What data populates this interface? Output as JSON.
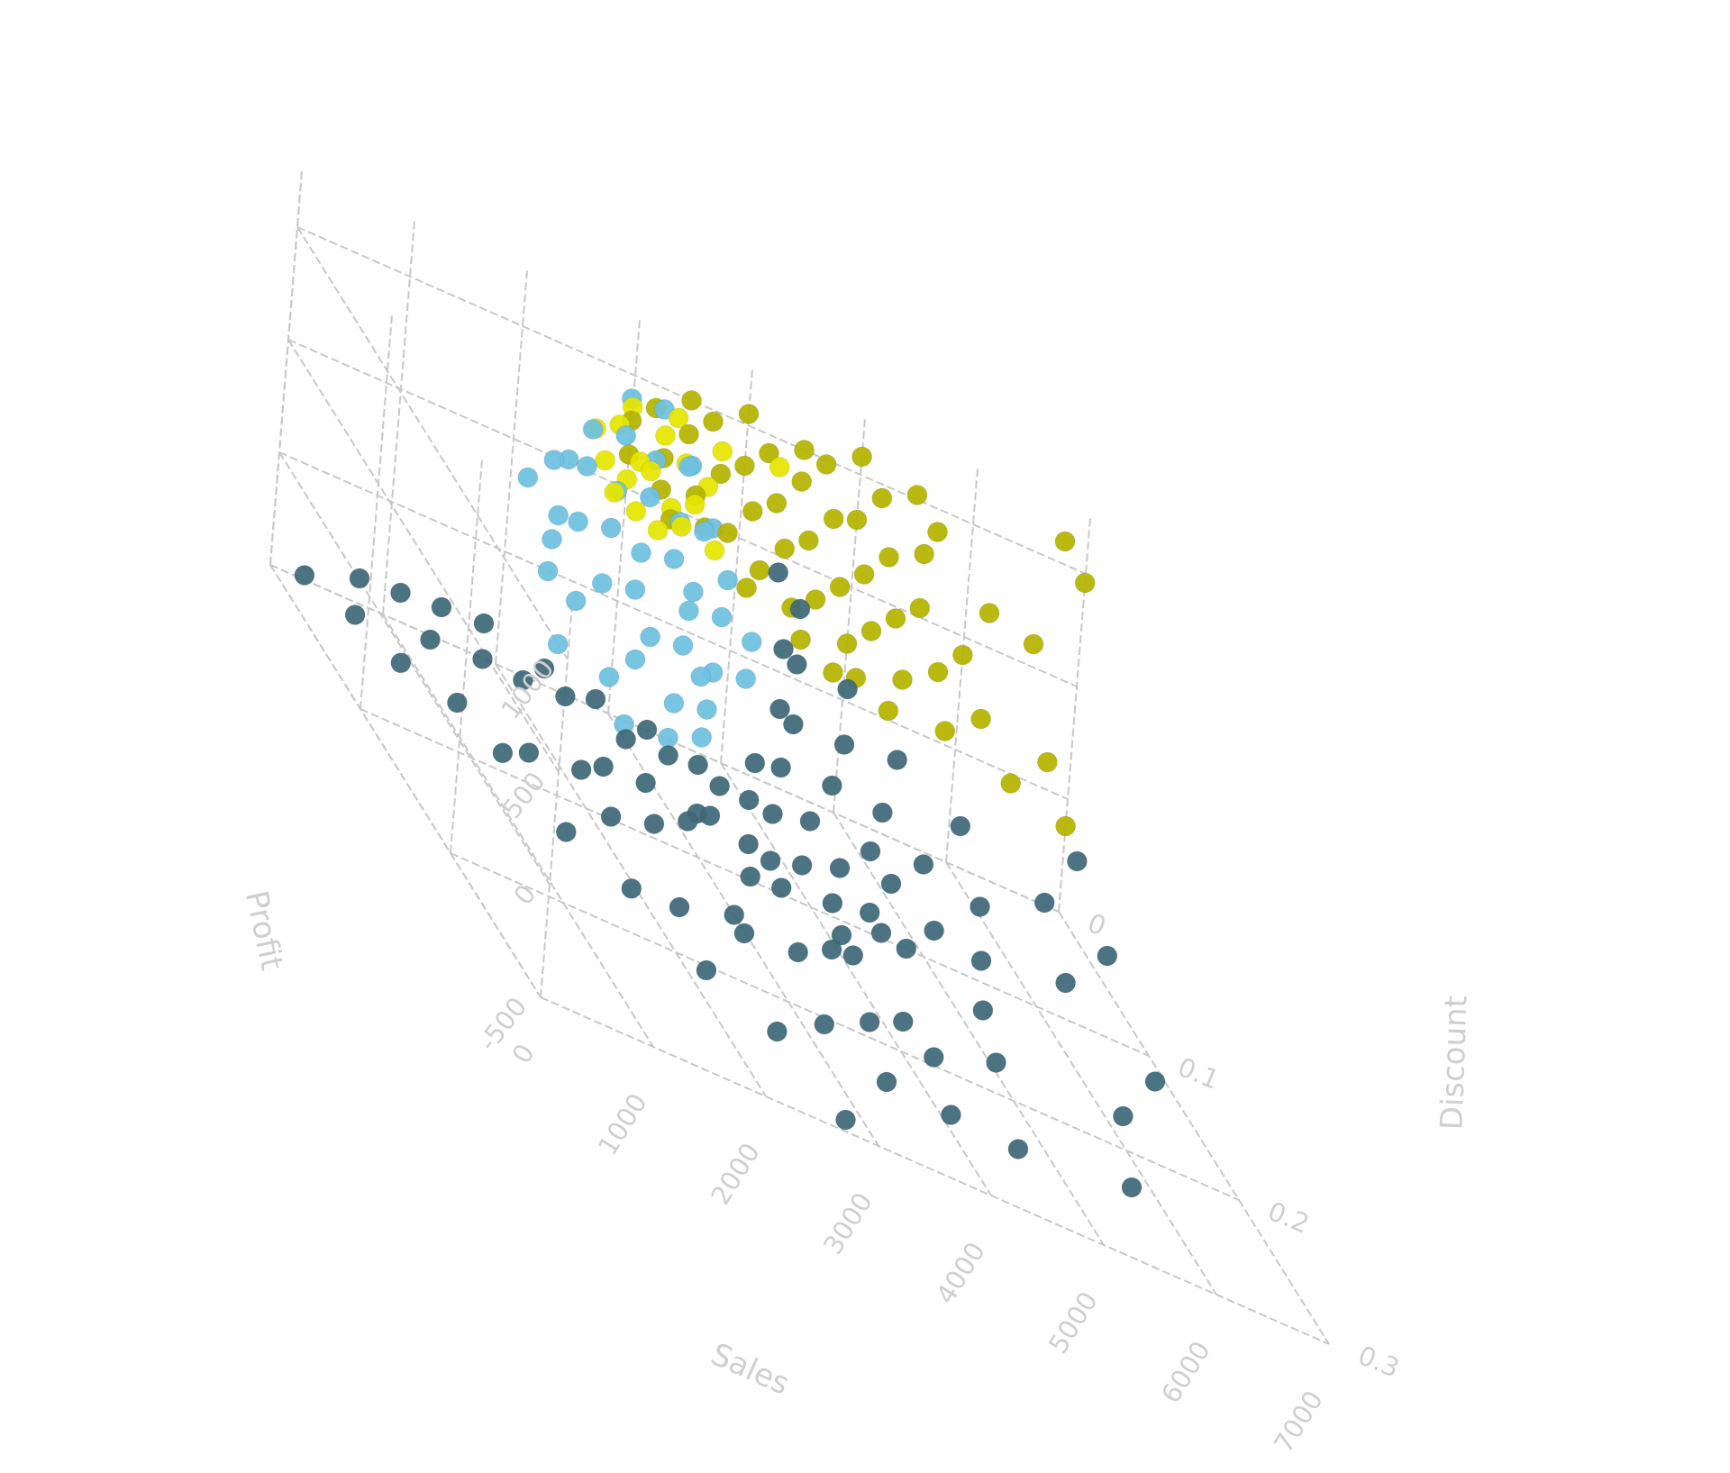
{
  "chart_data": {
    "type": "scatter",
    "projection": "3d",
    "title": "",
    "axes": {
      "x": {
        "label": "Sales",
        "range": [
          0,
          7000
        ],
        "ticks": [
          "0",
          "1000",
          "2000",
          "3000",
          "4000",
          "5000",
          "6000",
          "7000"
        ]
      },
      "y": {
        "label": "Discount",
        "range": [
          0,
          0.3
        ],
        "ticks": [
          "0",
          "0.1",
          "0.2",
          "0.3"
        ]
      },
      "z": {
        "label": "Profit",
        "range": [
          -500,
          1000
        ],
        "ticks": [
          "-500",
          "0",
          "500",
          "1000"
        ]
      }
    },
    "grid": true,
    "legend": "none",
    "colors": {
      "cluster_a": "#3e6878",
      "cluster_b": "#6ec1e0",
      "cluster_c": "#b4b400",
      "cluster_c_bright": "#e5e500",
      "grid": "#c8c8c8",
      "text": "#cfcfcf"
    },
    "series": [
      {
        "color": "cluster_a",
        "points": [
          [
            300,
            0.0,
            -480
          ],
          [
            500,
            0.03,
            -420
          ],
          [
            750,
            0.05,
            -450
          ],
          [
            1000,
            0.08,
            -380
          ],
          [
            1250,
            0.1,
            -420
          ],
          [
            1500,
            0.14,
            -460
          ],
          [
            1750,
            0.18,
            -400
          ],
          [
            2100,
            0.22,
            -430
          ],
          [
            2400,
            0.26,
            -380
          ],
          [
            2700,
            0.3,
            -450
          ],
          [
            600,
            0.02,
            -300
          ],
          [
            900,
            0.06,
            -250
          ],
          [
            1300,
            0.12,
            -280
          ],
          [
            1700,
            0.16,
            -220
          ],
          [
            2000,
            0.2,
            -300
          ],
          [
            2400,
            0.22,
            -200
          ],
          [
            2800,
            0.26,
            -260
          ],
          [
            3200,
            0.28,
            -300
          ],
          [
            3600,
            0.3,
            -230
          ],
          [
            4200,
            0.3,
            -250
          ],
          [
            700,
            0.05,
            -150
          ],
          [
            1100,
            0.09,
            -100
          ],
          [
            1500,
            0.15,
            -120
          ],
          [
            1900,
            0.18,
            -80
          ],
          [
            2300,
            0.22,
            -140
          ],
          [
            2700,
            0.24,
            -90
          ],
          [
            3100,
            0.27,
            -120
          ],
          [
            3500,
            0.29,
            -60
          ],
          [
            4300,
            0.26,
            -100
          ],
          [
            5200,
            0.3,
            -200
          ],
          [
            800,
            0.08,
            0
          ],
          [
            1200,
            0.12,
            20
          ],
          [
            1600,
            0.16,
            -20
          ],
          [
            2100,
            0.19,
            40
          ],
          [
            2500,
            0.21,
            10
          ],
          [
            2900,
            0.25,
            30
          ],
          [
            3300,
            0.28,
            -10
          ],
          [
            4500,
            0.22,
            -80
          ],
          [
            5600,
            0.24,
            -180
          ],
          [
            6200,
            0.2,
            -150
          ],
          [
            1000,
            0.1,
            100
          ],
          [
            1400,
            0.14,
            120
          ],
          [
            1800,
            0.18,
            80
          ],
          [
            2200,
            0.2,
            150
          ],
          [
            2600,
            0.23,
            110
          ],
          [
            3000,
            0.26,
            90
          ],
          [
            3800,
            0.22,
            40
          ],
          [
            4800,
            0.18,
            -50
          ],
          [
            5800,
            0.15,
            -120
          ],
          [
            6400,
            0.12,
            -60
          ],
          [
            1200,
            0.14,
            200
          ],
          [
            1600,
            0.18,
            230
          ],
          [
            2000,
            0.21,
            180
          ],
          [
            2400,
            0.24,
            250
          ],
          [
            2800,
            0.27,
            200
          ],
          [
            3400,
            0.24,
            150
          ],
          [
            4200,
            0.2,
            80
          ],
          [
            5100,
            0.14,
            0
          ],
          [
            6000,
            0.1,
            -40
          ],
          [
            6600,
            0.06,
            20
          ],
          [
            1400,
            0.17,
            300
          ],
          [
            1800,
            0.2,
            330
          ],
          [
            2200,
            0.24,
            280
          ],
          [
            2700,
            0.27,
            320
          ],
          [
            3200,
            0.25,
            260
          ],
          [
            3800,
            0.2,
            200
          ],
          [
            4500,
            0.15,
            120
          ],
          [
            5400,
            0.08,
            40
          ],
          [
            1600,
            0.2,
            400
          ],
          [
            2000,
            0.23,
            430
          ],
          [
            2500,
            0.26,
            380
          ],
          [
            3000,
            0.24,
            350
          ],
          [
            3600,
            0.2,
            300
          ],
          [
            4200,
            0.14,
            220
          ],
          [
            4900,
            0.07,
            160
          ],
          [
            1800,
            0.23,
            480
          ],
          [
            2300,
            0.25,
            500
          ],
          [
            2800,
            0.23,
            450
          ],
          [
            3400,
            0.18,
            420
          ],
          [
            4000,
            0.12,
            350
          ],
          [
            4600,
            0.05,
            280
          ],
          [
            2000,
            0.26,
            560
          ],
          [
            2600,
            0.22,
            580
          ],
          [
            3200,
            0.16,
            520
          ],
          [
            3800,
            0.09,
            470
          ],
          [
            4400,
            0.02,
            400
          ],
          [
            2200,
            0.24,
            640
          ],
          [
            2900,
            0.18,
            650
          ],
          [
            3500,
            0.11,
            600
          ],
          [
            4100,
            0.03,
            560
          ]
        ]
      },
      {
        "color": "cluster_b",
        "points": [
          [
            1400,
            0.2,
            380
          ],
          [
            1700,
            0.21,
            450
          ],
          [
            1900,
            0.19,
            520
          ],
          [
            2100,
            0.2,
            600
          ],
          [
            2300,
            0.18,
            680
          ],
          [
            2500,
            0.19,
            760
          ],
          [
            2700,
            0.17,
            840
          ],
          [
            1500,
            0.17,
            420
          ],
          [
            1800,
            0.16,
            500
          ],
          [
            2000,
            0.15,
            580
          ],
          [
            2200,
            0.16,
            650
          ],
          [
            2400,
            0.14,
            720
          ],
          [
            2600,
            0.15,
            800
          ],
          [
            2800,
            0.13,
            880
          ],
          [
            1600,
            0.12,
            460
          ],
          [
            1900,
            0.11,
            540
          ],
          [
            2100,
            0.12,
            620
          ],
          [
            2300,
            0.1,
            700
          ],
          [
            2500,
            0.11,
            780
          ],
          [
            2700,
            0.09,
            860
          ],
          [
            2900,
            0.1,
            940
          ],
          [
            1700,
            0.08,
            500
          ],
          [
            2000,
            0.07,
            580
          ],
          [
            2200,
            0.08,
            660
          ],
          [
            2400,
            0.06,
            740
          ],
          [
            2600,
            0.07,
            820
          ],
          [
            2800,
            0.05,
            900
          ],
          [
            3000,
            0.06,
            980
          ],
          [
            1800,
            0.04,
            540
          ],
          [
            2100,
            0.03,
            620
          ],
          [
            2300,
            0.04,
            700
          ],
          [
            2500,
            0.02,
            780
          ],
          [
            2700,
            0.03,
            860
          ],
          [
            2900,
            0.01,
            940
          ],
          [
            3100,
            0.02,
            1000
          ],
          [
            1900,
            0.22,
            560
          ],
          [
            2200,
            0.18,
            640
          ],
          [
            2600,
            0.12,
            720
          ],
          [
            3000,
            0.08,
            820
          ],
          [
            3200,
            0.04,
            900
          ],
          [
            1300,
            0.14,
            330
          ],
          [
            1600,
            0.09,
            400
          ],
          [
            2000,
            0.05,
            480
          ],
          [
            2400,
            0.01,
            560
          ]
        ]
      },
      {
        "color": "cluster_c",
        "points": [
          [
            3500,
            0.0,
            1000
          ],
          [
            4000,
            0.0,
            1050
          ],
          [
            4500,
            0.0,
            1000
          ],
          [
            5000,
            0.0,
            1080
          ],
          [
            5500,
            0.0,
            1020
          ],
          [
            6800,
            0.0,
            1100
          ],
          [
            3200,
            0.0,
            900
          ],
          [
            3700,
            0.0,
            950
          ],
          [
            4200,
            0.0,
            920
          ],
          [
            4700,
            0.0,
            980
          ],
          [
            5200,
            0.0,
            940
          ],
          [
            5700,
            0.0,
            900
          ],
          [
            7000,
            0.0,
            960
          ],
          [
            3000,
            0.0,
            800
          ],
          [
            3500,
            0.0,
            850
          ],
          [
            4000,
            0.0,
            820
          ],
          [
            4500,
            0.0,
            860
          ],
          [
            5000,
            0.0,
            800
          ],
          [
            5600,
            0.0,
            780
          ],
          [
            3300,
            0.0,
            700
          ],
          [
            3800,
            0.0,
            740
          ],
          [
            4300,
            0.0,
            720
          ],
          [
            4800,
            0.0,
            760
          ],
          [
            5300,
            0.0,
            700
          ],
          [
            6200,
            0.0,
            650
          ],
          [
            6600,
            0.0,
            600
          ],
          [
            3600,
            0.0,
            600
          ],
          [
            4100,
            0.0,
            640
          ],
          [
            4600,
            0.0,
            620
          ],
          [
            5100,
            0.0,
            580
          ],
          [
            5600,
            0.0,
            540
          ],
          [
            3900,
            0.0,
            500
          ],
          [
            4400,
            0.0,
            540
          ],
          [
            4900,
            0.0,
            480
          ],
          [
            5400,
            0.0,
            450
          ],
          [
            6000,
            0.0,
            420
          ],
          [
            4200,
            0.0,
            400
          ],
          [
            4700,
            0.0,
            380
          ],
          [
            5200,
            0.0,
            350
          ],
          [
            5800,
            0.0,
            300
          ],
          [
            4500,
            0.0,
            300
          ],
          [
            5000,
            0.0,
            250
          ],
          [
            5500,
            0.0,
            200
          ],
          [
            6200,
            0.0,
            180
          ],
          [
            6800,
            0.0,
            120
          ],
          [
            3400,
            0.0,
            450
          ],
          [
            4600,
            0.0,
            180
          ],
          [
            5100,
            0.0,
            120
          ],
          [
            5900,
            0.0,
            60
          ],
          [
            6500,
            0.0,
            -40
          ],
          [
            7000,
            0.0,
            -120
          ],
          [
            3000,
            0.0,
            650
          ],
          [
            3300,
            0.0,
            560
          ],
          [
            3700,
            0.0,
            480
          ],
          [
            4100,
            0.0,
            300
          ],
          [
            4900,
            0.0,
            100
          ],
          [
            5400,
            0.0,
            40
          ]
        ]
      },
      {
        "color": "cluster_c_bright",
        "points": [
          [
            2700,
            0.0,
            700
          ],
          [
            2900,
            0.0,
            760
          ],
          [
            3100,
            0.0,
            640
          ],
          [
            3300,
            0.0,
            800
          ],
          [
            3500,
            0.0,
            720
          ],
          [
            3700,
            0.0,
            660
          ],
          [
            2800,
            0.0,
            580
          ],
          [
            3000,
            0.0,
            540
          ],
          [
            3200,
            0.0,
            620
          ],
          [
            3400,
            0.0,
            500
          ],
          [
            3600,
            0.0,
            560
          ],
          [
            2900,
            0.0,
            460
          ],
          [
            3100,
            0.0,
            420
          ],
          [
            3300,
            0.0,
            380
          ],
          [
            3500,
            0.0,
            440
          ],
          [
            3800,
            0.0,
            400
          ],
          [
            3000,
            0.0,
            860
          ],
          [
            3400,
            0.0,
            900
          ],
          [
            3800,
            0.0,
            840
          ],
          [
            4300,
            0.0,
            880
          ]
        ]
      }
    ]
  }
}
